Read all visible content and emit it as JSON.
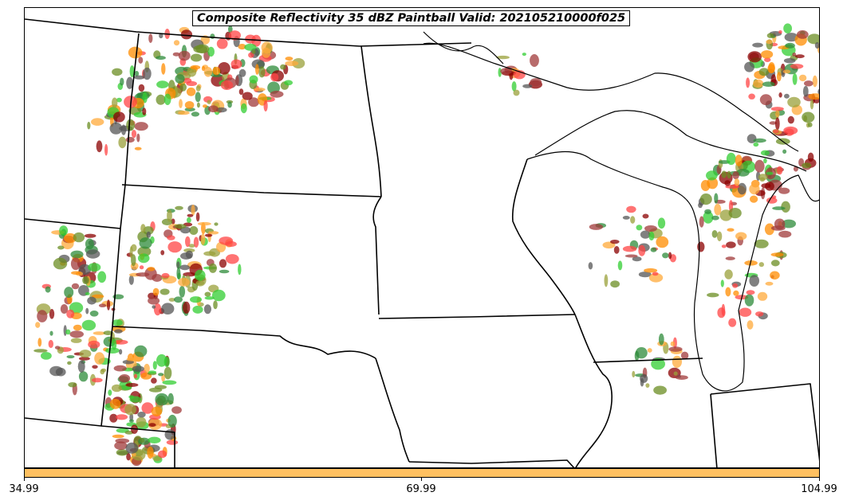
{
  "title": "Composite Reflectivity 35 dBZ Paintball Valid: 202105210000f025",
  "colorbar": {
    "color": "#ffc060",
    "ticks": [
      "34.99",
      "69.99",
      "104.99"
    ]
  },
  "paintball_palette": [
    "#ff4444",
    "#8b0000",
    "#ff8c00",
    "#ffa93a",
    "#2e8b3a",
    "#32cd32",
    "#9aa03a",
    "#555555",
    "#a03a3a",
    "#6b8e23"
  ],
  "map": {
    "regions": [
      "North Dakota",
      "South Dakota",
      "Nebraska",
      "Minnesota",
      "Iowa",
      "Wisconsin",
      "Michigan",
      "Illinois"
    ]
  }
}
